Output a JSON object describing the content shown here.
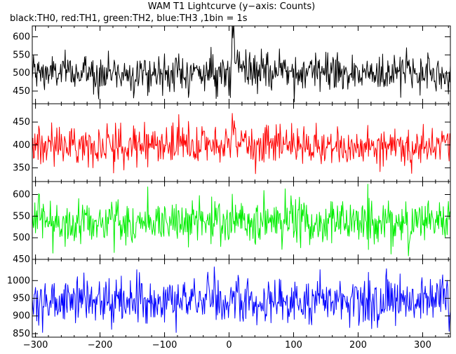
{
  "chart_data": {
    "type": "line",
    "title": "WAM T1 Lightcurve (y−axis: Counts)",
    "subtitle": "black:TH0, red:TH1, green:TH2, blue:TH3 ,1bin = 1s",
    "x_range": [
      -305,
      343
    ],
    "x_ticks": [
      -300,
      -200,
      -100,
      0,
      100,
      200,
      300
    ],
    "x_tick_labels": [
      "−300",
      "−200",
      "−100",
      "0",
      "100",
      "200",
      "300"
    ],
    "bin_seconds": 1,
    "grid": false,
    "panels": [
      {
        "series": "TH0",
        "color": "#000000",
        "ylim": [
          415,
          630
        ],
        "y_ticks": [
          450,
          500,
          550,
          600
        ],
        "y_tick_labels": [
          "450",
          "500",
          "550",
          "600"
        ],
        "mean": 500,
        "noise_sd": 26,
        "burst": {
          "peak_time": 5,
          "peak": 628,
          "decay_s": 6
        }
      },
      {
        "series": "TH1",
        "color": "#ff0000",
        "ylim": [
          320,
          490
        ],
        "y_ticks": [
          350,
          400,
          450
        ],
        "y_tick_labels": [
          "350",
          "400",
          "450"
        ],
        "mean": 400,
        "noise_sd": 21,
        "burst": {
          "peak_time": 5,
          "peak": 470,
          "decay_s": 5
        }
      },
      {
        "series": "TH2",
        "color": "#00ee00",
        "ylim": [
          450,
          630
        ],
        "y_ticks": [
          500,
          550,
          600
        ],
        "y_tick_labels": [
          "500",
          "550",
          "600"
        ],
        "mean": 537,
        "noise_sd": 27
      },
      {
        "series": "TH3",
        "color": "#0000ff",
        "ylim": [
          840,
          1060
        ],
        "y_ticks": [
          850,
          900,
          950,
          1000
        ],
        "y_tick_labels": [
          "850",
          "900",
          "950",
          "1000"
        ],
        "top_label": "450",
        "mean": 942,
        "noise_sd": 33
      }
    ]
  }
}
